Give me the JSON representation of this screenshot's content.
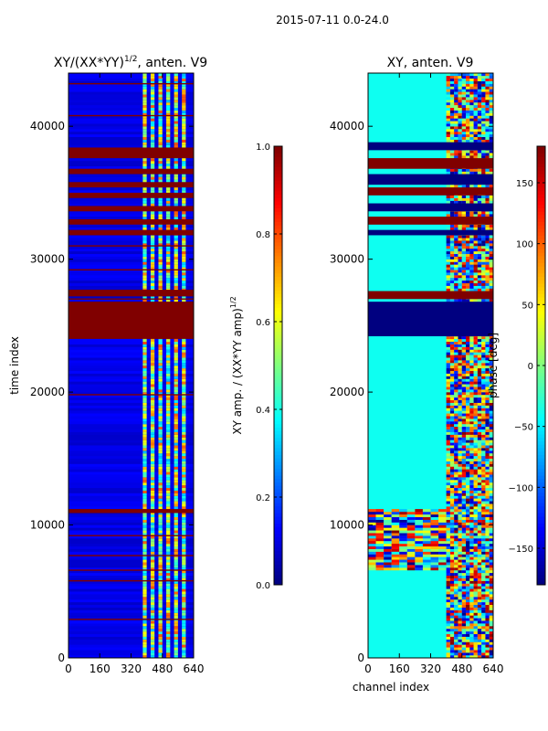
{
  "figure_title": "2015-07-11 0.0-24.0",
  "chart_data": [
    {
      "type": "heatmap",
      "title": "XY/(XX*YY)^1/2, anten. V9",
      "title_base": "XY/(XX*YY)",
      "title_exp": "1/2",
      "title_suffix": ", anten. V9",
      "xlabel": "",
      "ylabel": "time index",
      "xlim": [
        0,
        640
      ],
      "ylim": [
        0,
        44000
      ],
      "xticks": [
        0,
        160,
        320,
        480,
        640
      ],
      "yticks": [
        0,
        10000,
        20000,
        30000,
        40000
      ],
      "colormap": "jet",
      "colorbar": {
        "label": "XY amp. / (XX*YY amp)^1/2",
        "label_base": "XY amp. / (XX*YY amp)",
        "label_exp": "1/2",
        "range": [
          0.0,
          1.0
        ],
        "ticks": [
          "0.0",
          "0.2",
          "0.4",
          "0.6",
          "0.8",
          "1.0"
        ]
      },
      "background_value": 0.1,
      "saturated_row_bands": [
        [
          24000,
          26800
        ],
        [
          27200,
          27700
        ],
        [
          31800,
          32200
        ],
        [
          32600,
          33000
        ],
        [
          33600,
          34000
        ],
        [
          34600,
          35000
        ],
        [
          35400,
          35800
        ],
        [
          36400,
          36800
        ],
        [
          37600,
          38400
        ],
        [
          10900,
          11200
        ]
      ],
      "thin_row_lines": [
        2900,
        5800,
        6600,
        7700,
        9200,
        19800,
        27000,
        29200,
        31000,
        40800,
        43200
      ],
      "active_channel_bands": [
        [
          380,
          400
        ],
        [
          420,
          440
        ],
        [
          460,
          480
        ],
        [
          500,
          520
        ],
        [
          540,
          560
        ],
        [
          580,
          600
        ]
      ],
      "active_value_range": [
        0.3,
        0.8
      ]
    },
    {
      "type": "heatmap",
      "title": "XY, anten. V9",
      "xlabel": "channel index",
      "ylabel": "",
      "xlim": [
        0,
        640
      ],
      "ylim": [
        0,
        44000
      ],
      "xticks": [
        0,
        160,
        320,
        480,
        640
      ],
      "yticks": [
        0,
        10000,
        20000,
        30000,
        40000
      ],
      "colormap": "jet",
      "colorbar": {
        "label": "phase [deg]",
        "range": [
          -180,
          180
        ],
        "ticks": [
          "−150",
          "−100",
          "−50",
          "0",
          "50",
          "100",
          "150"
        ]
      },
      "background_value": -40,
      "flagged_row_bands": [
        [
          24200,
          26800
        ],
        [
          27000,
          27600
        ],
        [
          31800,
          32200
        ],
        [
          32600,
          33200
        ],
        [
          33600,
          34200
        ],
        [
          34800,
          35400
        ],
        [
          35600,
          36400
        ],
        [
          36800,
          37600
        ],
        [
          38200,
          38800
        ]
      ],
      "disturbed_row_range": [
        6500,
        11200
      ],
      "active_channel_range": [
        400,
        640
      ]
    }
  ]
}
